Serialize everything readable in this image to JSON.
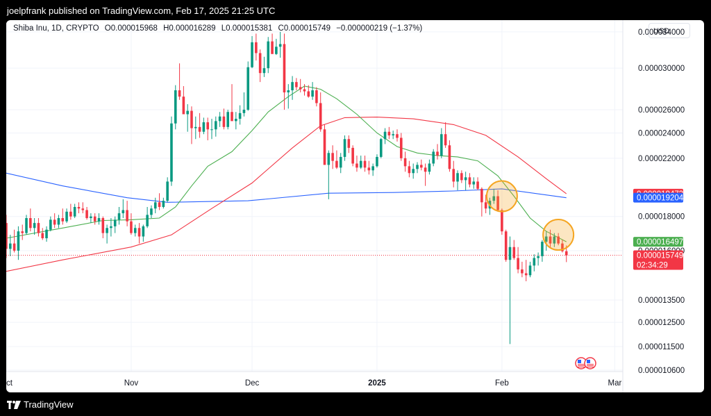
{
  "header": {
    "text": "joelpfrank published on TradingView.com, Feb 17, 2025 21:25 UTC"
  },
  "footer": {
    "brand": "TradingView"
  },
  "legend": {
    "symbol": "Shiba Inu, 1D, CRYPTO",
    "open": "O0.000015968",
    "high": "H0.000016289",
    "low": "L0.000015381",
    "close": "C0.000015749",
    "change": "−0.000000219 (−1.37%)"
  },
  "currency_button": "USD",
  "colors": {
    "up": "#089981",
    "down": "#f23645",
    "ma_fast": "#4caf50",
    "ma_mid": "#f23645",
    "ma_slow": "#2962ff",
    "highlight": "#f5a623"
  },
  "chart_data": {
    "type": "candlestick",
    "y_scale": "log",
    "ylim": [
      1.055e-05,
      3.54e-05
    ],
    "y_ticks": [
      "0.000034000",
      "0.000030000",
      "0.000026000",
      "0.000024000",
      "0.000022000",
      "0.000018000",
      "0.000016000",
      "0.000013500",
      "0.000012500",
      "0.000011500",
      "0.000010600"
    ],
    "x_ticks": [
      {
        "label": "Oct",
        "date": "2024-10-01"
      },
      {
        "label": "Nov",
        "date": "2024-11-01"
      },
      {
        "label": "Dec",
        "date": "2024-12-01"
      },
      {
        "label": "2025",
        "date": "2025-01-01",
        "bold": true
      },
      {
        "label": "Feb",
        "date": "2025-02-01"
      },
      {
        "label": "Mar",
        "date": "2025-03-01"
      }
    ],
    "x_range": [
      "2024-10-01",
      "2025-03-03"
    ],
    "grid": true,
    "price_labels": [
      {
        "name": "MA red",
        "value": "0.000019473",
        "color": "#f23645"
      },
      {
        "name": "MA blue",
        "value": "0.000019204",
        "color": "#2962ff"
      },
      {
        "name": "MA green",
        "value": "0.000016497",
        "color": "#4caf50"
      },
      {
        "name": "Last price",
        "value": "0.000015749",
        "color": "#f23645",
        "countdown": "02:34:29"
      }
    ],
    "last_price": 1.5749e-05,
    "candles": [
      [
        "2024-10-01",
        17.6,
        18.1,
        15.6,
        16.1
      ],
      [
        "2024-10-02",
        16.1,
        16.9,
        15.7,
        16.4
      ],
      [
        "2024-10-03",
        16.4,
        17.2,
        15.9,
        16.0
      ],
      [
        "2024-10-04",
        16.0,
        17.4,
        15.5,
        17.1
      ],
      [
        "2024-10-05",
        17.1,
        17.5,
        16.6,
        17.0
      ],
      [
        "2024-10-06",
        17.0,
        18.1,
        16.9,
        17.9
      ],
      [
        "2024-10-07",
        17.9,
        18.5,
        17.1,
        17.3
      ],
      [
        "2024-10-08",
        17.3,
        17.9,
        16.9,
        17.6
      ],
      [
        "2024-10-09",
        17.6,
        17.9,
        16.8,
        17.0
      ],
      [
        "2024-10-10",
        17.0,
        17.3,
        16.6,
        16.7
      ],
      [
        "2024-10-11",
        16.7,
        17.4,
        16.5,
        17.2
      ],
      [
        "2024-10-12",
        17.2,
        18.0,
        17.1,
        17.8
      ],
      [
        "2024-10-13",
        17.8,
        18.2,
        17.3,
        17.5
      ],
      [
        "2024-10-14",
        17.5,
        18.1,
        17.3,
        17.9
      ],
      [
        "2024-10-15",
        17.9,
        18.5,
        17.5,
        17.7
      ],
      [
        "2024-10-16",
        17.7,
        18.5,
        17.6,
        18.3
      ],
      [
        "2024-10-17",
        18.3,
        18.8,
        17.8,
        18.0
      ],
      [
        "2024-10-18",
        18.0,
        18.8,
        17.9,
        18.6
      ],
      [
        "2024-10-19",
        18.6,
        18.9,
        18.2,
        18.5
      ],
      [
        "2024-10-20",
        18.5,
        18.9,
        18.2,
        18.4
      ],
      [
        "2024-10-21",
        18.4,
        18.6,
        17.8,
        17.9
      ],
      [
        "2024-10-22",
        17.9,
        18.2,
        17.6,
        18.0
      ],
      [
        "2024-10-23",
        18.0,
        18.2,
        17.5,
        17.7
      ],
      [
        "2024-10-24",
        17.7,
        18.2,
        17.5,
        17.9
      ],
      [
        "2024-10-25",
        17.9,
        18.0,
        16.7,
        17.0
      ],
      [
        "2024-10-26",
        17.0,
        17.5,
        16.4,
        17.3
      ],
      [
        "2024-10-27",
        17.3,
        17.9,
        16.8,
        17.4
      ],
      [
        "2024-10-28",
        17.4,
        18.0,
        17.0,
        17.8
      ],
      [
        "2024-10-29",
        17.8,
        18.6,
        17.5,
        18.2
      ],
      [
        "2024-10-30",
        18.2,
        19.1,
        17.9,
        18.4
      ],
      [
        "2024-10-31",
        18.4,
        19.0,
        17.4,
        17.7
      ],
      [
        "2024-11-01",
        17.7,
        18.2,
        16.9,
        17.0
      ],
      [
        "2024-11-02",
        17.0,
        17.5,
        16.8,
        17.3
      ],
      [
        "2024-11-03",
        17.3,
        17.6,
        16.4,
        16.8
      ],
      [
        "2024-11-04",
        16.8,
        17.5,
        16.5,
        17.4
      ],
      [
        "2024-11-05",
        17.4,
        18.6,
        17.3,
        18.1
      ],
      [
        "2024-11-06",
        18.1,
        18.7,
        17.9,
        18.5
      ],
      [
        "2024-11-07",
        18.5,
        19.2,
        18.2,
        18.9
      ],
      [
        "2024-11-08",
        18.9,
        19.5,
        18.4,
        18.6
      ],
      [
        "2024-11-09",
        18.6,
        19.2,
        18.5,
        19.0
      ],
      [
        "2024-11-10",
        19.0,
        20.6,
        18.9,
        20.3
      ],
      [
        "2024-11-11",
        20.3,
        25.4,
        20.0,
        24.8
      ],
      [
        "2024-11-12",
        24.8,
        28.3,
        24.3,
        27.8
      ],
      [
        "2024-11-13",
        27.8,
        30.5,
        26.9,
        27.2
      ],
      [
        "2024-11-14",
        27.2,
        28.2,
        25.8,
        25.6
      ],
      [
        "2024-11-15",
        25.6,
        26.5,
        24.1,
        25.9
      ],
      [
        "2024-11-16",
        25.9,
        26.3,
        23.1,
        24.4
      ],
      [
        "2024-11-17",
        24.4,
        25.4,
        23.5,
        24.5
      ],
      [
        "2024-11-18",
        24.5,
        25.7,
        23.6,
        24.1
      ],
      [
        "2024-11-19",
        24.1,
        25.3,
        23.9,
        24.9
      ],
      [
        "2024-11-20",
        24.9,
        25.3,
        23.4,
        24.3
      ],
      [
        "2024-11-21",
        24.3,
        25.2,
        23.5,
        24.3
      ],
      [
        "2024-11-22",
        24.3,
        25.4,
        23.7,
        25.0
      ],
      [
        "2024-11-23",
        25.0,
        25.8,
        24.5,
        25.4
      ],
      [
        "2024-11-24",
        25.4,
        26.1,
        24.3,
        24.5
      ],
      [
        "2024-11-25",
        24.5,
        26.0,
        24.3,
        25.8
      ],
      [
        "2024-11-26",
        25.8,
        28.4,
        25.2,
        25.0
      ],
      [
        "2024-11-27",
        25.0,
        25.8,
        24.3,
        25.2
      ],
      [
        "2024-11-28",
        25.2,
        26.4,
        24.7,
        25.7
      ],
      [
        "2024-11-29",
        25.7,
        27.6,
        25.4,
        26.0
      ],
      [
        "2024-11-30",
        26.0,
        30.7,
        25.9,
        30.1
      ],
      [
        "2024-12-01",
        30.1,
        33.5,
        30.0,
        32.8
      ],
      [
        "2024-12-02",
        32.8,
        33.8,
        30.8,
        31.6
      ],
      [
        "2024-12-03",
        31.6,
        32.0,
        28.6,
        29.5
      ],
      [
        "2024-12-04",
        29.5,
        31.2,
        29.1,
        30.0
      ],
      [
        "2024-12-05",
        30.0,
        33.4,
        29.5,
        32.9
      ],
      [
        "2024-12-06",
        32.9,
        33.8,
        31.6,
        31.5
      ],
      [
        "2024-12-07",
        31.5,
        33.2,
        31.4,
        32.3
      ],
      [
        "2024-12-08",
        32.3,
        34.0,
        31.1,
        32.6
      ],
      [
        "2024-12-09",
        32.6,
        33.8,
        26.0,
        27.6
      ],
      [
        "2024-12-10",
        27.6,
        28.4,
        26.1,
        27.8
      ],
      [
        "2024-12-11",
        27.8,
        29.2,
        26.9,
        28.6
      ],
      [
        "2024-12-12",
        28.6,
        29.0,
        27.8,
        28.1
      ],
      [
        "2024-12-13",
        28.1,
        28.9,
        27.6,
        27.9
      ],
      [
        "2024-12-14",
        27.9,
        28.4,
        27.3,
        27.7
      ],
      [
        "2024-12-15",
        27.7,
        28.3,
        27.1,
        27.2
      ],
      [
        "2024-12-16",
        27.2,
        28.6,
        26.9,
        27.8
      ],
      [
        "2024-12-17",
        27.8,
        28.1,
        26.3,
        26.6
      ],
      [
        "2024-12-18",
        26.6,
        27.6,
        24.1,
        24.3
      ],
      [
        "2024-12-19",
        24.3,
        24.7,
        21.5,
        21.5
      ],
      [
        "2024-12-20",
        21.5,
        22.6,
        19.1,
        22.4
      ],
      [
        "2024-12-21",
        22.4,
        23.0,
        21.2,
        21.8
      ],
      [
        "2024-12-22",
        21.8,
        22.6,
        21.2,
        21.3
      ],
      [
        "2024-12-23",
        21.3,
        22.4,
        20.9,
        22.1
      ],
      [
        "2024-12-24",
        22.1,
        23.8,
        21.8,
        23.5
      ],
      [
        "2024-12-25",
        23.5,
        23.8,
        22.4,
        22.8
      ],
      [
        "2024-12-26",
        22.8,
        23.0,
        21.4,
        21.6
      ],
      [
        "2024-12-27",
        21.6,
        22.2,
        21.0,
        21.3
      ],
      [
        "2024-12-28",
        21.3,
        22.2,
        21.2,
        21.8
      ],
      [
        "2024-12-29",
        21.8,
        22.2,
        21.0,
        21.3
      ],
      [
        "2024-12-30",
        21.3,
        21.8,
        20.8,
        21.1
      ],
      [
        "2024-12-31",
        21.1,
        21.6,
        20.7,
        21.4
      ],
      [
        "2025-01-01",
        21.4,
        22.3,
        21.3,
        22.1
      ],
      [
        "2025-01-02",
        22.1,
        23.6,
        22.0,
        23.5
      ],
      [
        "2025-01-03",
        23.5,
        24.4,
        23.1,
        24.1
      ],
      [
        "2025-01-04",
        24.1,
        24.5,
        23.5,
        23.8
      ],
      [
        "2025-01-05",
        23.8,
        24.2,
        23.5,
        23.9
      ],
      [
        "2025-01-06",
        23.9,
        24.3,
        23.3,
        23.6
      ],
      [
        "2025-01-07",
        23.6,
        24.0,
        21.8,
        22.0
      ],
      [
        "2025-01-08",
        22.0,
        22.5,
        21.0,
        21.4
      ],
      [
        "2025-01-09",
        21.4,
        21.8,
        20.6,
        20.9
      ],
      [
        "2025-01-10",
        20.9,
        21.6,
        20.5,
        21.2
      ],
      [
        "2025-01-11",
        21.2,
        21.7,
        20.9,
        21.5
      ],
      [
        "2025-01-12",
        21.5,
        21.9,
        21.1,
        21.3
      ],
      [
        "2025-01-13",
        21.3,
        21.6,
        20.0,
        21.0
      ],
      [
        "2025-01-14",
        21.0,
        21.9,
        20.8,
        21.6
      ],
      [
        "2025-01-15",
        21.6,
        22.7,
        21.4,
        22.5
      ],
      [
        "2025-01-16",
        22.5,
        23.1,
        21.9,
        22.2
      ],
      [
        "2025-01-17",
        22.2,
        24.4,
        22.0,
        23.9
      ],
      [
        "2025-01-18",
        23.9,
        24.9,
        22.8,
        23.0
      ],
      [
        "2025-01-19",
        23.0,
        23.4,
        21.0,
        21.2
      ],
      [
        "2025-01-20",
        21.2,
        21.8,
        19.9,
        20.3
      ],
      [
        "2025-01-21",
        20.3,
        21.1,
        19.7,
        20.9
      ],
      [
        "2025-01-22",
        20.9,
        21.1,
        20.2,
        20.4
      ],
      [
        "2025-01-23",
        20.4,
        21.0,
        19.7,
        20.6
      ],
      [
        "2025-01-24",
        20.6,
        20.9,
        19.9,
        20.1
      ],
      [
        "2025-01-25",
        20.1,
        20.6,
        19.8,
        20.3
      ],
      [
        "2025-01-26",
        20.3,
        20.6,
        19.7,
        19.8
      ],
      [
        "2025-01-27",
        19.8,
        19.9,
        18.0,
        18.9
      ],
      [
        "2025-01-28",
        18.9,
        19.4,
        18.2,
        18.5
      ],
      [
        "2025-01-29",
        18.5,
        19.2,
        18.1,
        19.0
      ],
      [
        "2025-01-30",
        19.0,
        19.8,
        18.8,
        19.3
      ],
      [
        "2025-01-31",
        19.3,
        19.7,
        18.3,
        18.4
      ],
      [
        "2025-02-01",
        18.4,
        18.5,
        16.9,
        17.1
      ],
      [
        "2025-02-02",
        17.1,
        17.2,
        15.4,
        15.5
      ],
      [
        "2025-02-03",
        15.5,
        16.8,
        11.6,
        16.2
      ],
      [
        "2025-02-04",
        16.2,
        16.6,
        15.5,
        15.6
      ],
      [
        "2025-02-05",
        15.6,
        16.2,
        14.8,
        15.0
      ],
      [
        "2025-02-06",
        15.0,
        15.4,
        14.6,
        14.8
      ],
      [
        "2025-02-07",
        14.8,
        15.5,
        14.4,
        14.7
      ],
      [
        "2025-02-08",
        14.7,
        15.4,
        14.6,
        15.2
      ],
      [
        "2025-02-09",
        15.2,
        15.8,
        14.9,
        15.6
      ],
      [
        "2025-02-10",
        15.6,
        15.9,
        15.2,
        15.7
      ],
      [
        "2025-02-11",
        15.7,
        16.6,
        15.4,
        16.5
      ],
      [
        "2025-02-12",
        16.5,
        17.1,
        16.0,
        16.8
      ],
      [
        "2025-02-13",
        16.8,
        17.2,
        16.2,
        16.4
      ],
      [
        "2025-02-14",
        16.4,
        17.0,
        16.2,
        16.8
      ],
      [
        "2025-02-15",
        16.8,
        17.0,
        16.3,
        16.4
      ],
      [
        "2025-02-16",
        16.4,
        16.6,
        15.9,
        15.97
      ],
      [
        "2025-02-17",
        15.968,
        16.289,
        15.381,
        15.749
      ]
    ],
    "ma_green": [
      [
        "2024-10-01",
        16.7
      ],
      [
        "2024-10-15",
        17.3
      ],
      [
        "2024-10-25",
        17.75
      ],
      [
        "2024-11-01",
        17.8
      ],
      [
        "2024-11-08",
        17.9
      ],
      [
        "2024-11-12",
        18.6
      ],
      [
        "2024-11-16",
        20.0
      ],
      [
        "2024-11-20",
        21.4
      ],
      [
        "2024-11-26",
        22.5
      ],
      [
        "2024-12-01",
        24.2
      ],
      [
        "2024-12-05",
        25.8
      ],
      [
        "2024-12-10",
        27.2
      ],
      [
        "2024-12-14",
        28.2
      ],
      [
        "2024-12-18",
        27.9
      ],
      [
        "2024-12-22",
        27.0
      ],
      [
        "2024-12-27",
        25.6
      ],
      [
        "2025-01-01",
        24.0
      ],
      [
        "2025-01-06",
        22.9
      ],
      [
        "2025-01-11",
        22.4
      ],
      [
        "2025-01-16",
        22.2
      ],
      [
        "2025-01-21",
        22.1
      ],
      [
        "2025-01-26",
        21.8
      ],
      [
        "2025-01-31",
        20.7
      ],
      [
        "2025-02-04",
        19.3
      ],
      [
        "2025-02-08",
        17.9
      ],
      [
        "2025-02-12",
        17.1
      ],
      [
        "2025-02-17",
        16.5
      ]
    ],
    "ma_red": [
      [
        "2024-10-01",
        14.9
      ],
      [
        "2024-10-15",
        15.5
      ],
      [
        "2024-11-01",
        16.2
      ],
      [
        "2024-11-11",
        16.9
      ],
      [
        "2024-11-21",
        18.5
      ],
      [
        "2024-12-01",
        20.2
      ],
      [
        "2024-12-11",
        22.8
      ],
      [
        "2024-12-18",
        24.6
      ],
      [
        "2024-12-24",
        25.3
      ],
      [
        "2025-01-01",
        25.35
      ],
      [
        "2025-01-10",
        25.2
      ],
      [
        "2025-01-20",
        24.7
      ],
      [
        "2025-01-28",
        23.8
      ],
      [
        "2025-02-05",
        22.1
      ],
      [
        "2025-02-12",
        20.5
      ],
      [
        "2025-02-17",
        19.47
      ]
    ],
    "ma_blue": [
      [
        "2024-10-01",
        20.9
      ],
      [
        "2024-10-15",
        20.0
      ],
      [
        "2024-10-31",
        19.2
      ],
      [
        "2024-11-10",
        18.9
      ],
      [
        "2024-11-30",
        19.0
      ],
      [
        "2024-12-20",
        19.5
      ],
      [
        "2025-01-05",
        19.55
      ],
      [
        "2025-01-20",
        19.65
      ],
      [
        "2025-02-01",
        19.8
      ],
      [
        "2025-02-17",
        19.2
      ]
    ],
    "highlights": [
      {
        "date": "2025-02-01",
        "price": 19.3
      },
      {
        "date": "2025-02-15",
        "price": 16.9
      }
    ]
  }
}
